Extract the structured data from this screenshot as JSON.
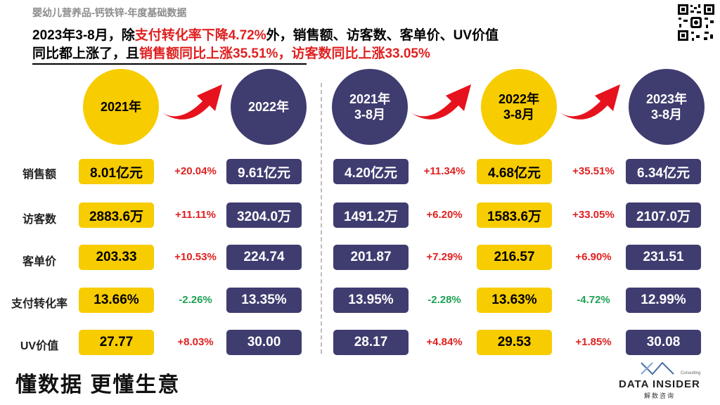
{
  "header": {
    "subtitle": "婴幼儿营养品-钙铁锌-年度基础数据",
    "line1_a": "2023年3-8月，除",
    "line1_red": "支付转化率下降4.72%",
    "line1_b": "外，销售额、访客数、客单价、UV价值",
    "line2_a": "同比都上涨了，且",
    "line2_red": "销售额同比上涨35.51%，访客数同比上涨33.05%"
  },
  "periods": [
    "2021年",
    "2022年",
    "2021年\n3-8月",
    "2022年\n3-8月",
    "2023年\n3-8月"
  ],
  "rows": [
    {
      "label": "销售额",
      "values": [
        "8.01亿元",
        "9.61亿元",
        "4.20亿元",
        "4.68亿元",
        "6.34亿元"
      ],
      "changes": [
        "+20.04%",
        "+11.34%",
        "+35.51%"
      ]
    },
    {
      "label": "访客数",
      "values": [
        "2883.6万",
        "3204.0万",
        "1491.2万",
        "1583.6万",
        "2107.0万"
      ],
      "changes": [
        "+11.11%",
        "+6.20%",
        "+33.05%"
      ]
    },
    {
      "label": "客单价",
      "values": [
        "203.33",
        "224.74",
        "201.87",
        "216.57",
        "231.51"
      ],
      "changes": [
        "+10.53%",
        "+7.29%",
        "+6.90%"
      ]
    },
    {
      "label": "支付转化率",
      "values": [
        "13.66%",
        "13.35%",
        "13.95%",
        "13.63%",
        "12.99%"
      ],
      "changes": [
        "-2.26%",
        "-2.28%",
        "-4.72%"
      ]
    },
    {
      "label": "UV价值",
      "values": [
        "27.77",
        "30.00",
        "28.17",
        "29.53",
        "30.08"
      ],
      "changes": [
        "+8.03%",
        "+4.84%",
        "+1.85%"
      ]
    }
  ],
  "footer": {
    "slogan": "懂数据 更懂生意",
    "logo_name": "DATA INSIDER",
    "logo_sub": "解数咨询",
    "logo_tag": "Consulting"
  },
  "colors": {
    "yellow": "#f7cc00",
    "navy": "#3f3c70",
    "up": "#e02020",
    "down": "#1fa055"
  }
}
